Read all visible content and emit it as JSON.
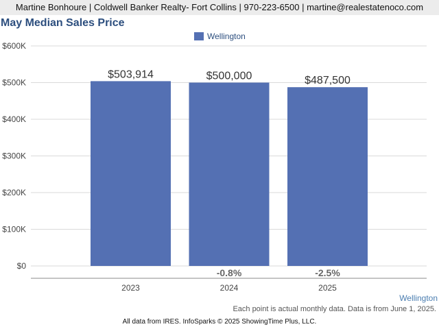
{
  "header": {
    "contact": "Martine Bonhoure | Coldwell Banker Realty- Fort Collins | 970-223-6500 | martine@realestatenoco.com"
  },
  "chart_data": {
    "type": "bar",
    "title": "May Median Sales Price",
    "categories": [
      "2023",
      "2024",
      "2025"
    ],
    "series": [
      {
        "name": "Wellington",
        "color": "#5470b3",
        "values": [
          503914,
          500000,
          487500
        ],
        "value_labels": [
          "$503,914",
          "$500,000",
          "$487,500"
        ]
      }
    ],
    "change_labels": [
      "",
      "-0.8%",
      "-2.5%"
    ],
    "yticks": [
      0,
      100000,
      200000,
      300000,
      400000,
      500000,
      600000
    ],
    "ytick_labels": [
      "$0",
      "$100K",
      "$200K",
      "$300K",
      "$400K",
      "$500K",
      "$600K"
    ],
    "ylim": [
      0,
      600000
    ],
    "grid": true,
    "legend_position": "top-center"
  },
  "location_label": "Wellington",
  "footnote": "Each point is actual monthly data. Data is from June 1, 2025.",
  "copyright": "All data from IRES. InfoSparks © 2025 ShowingTime Plus, LLC."
}
